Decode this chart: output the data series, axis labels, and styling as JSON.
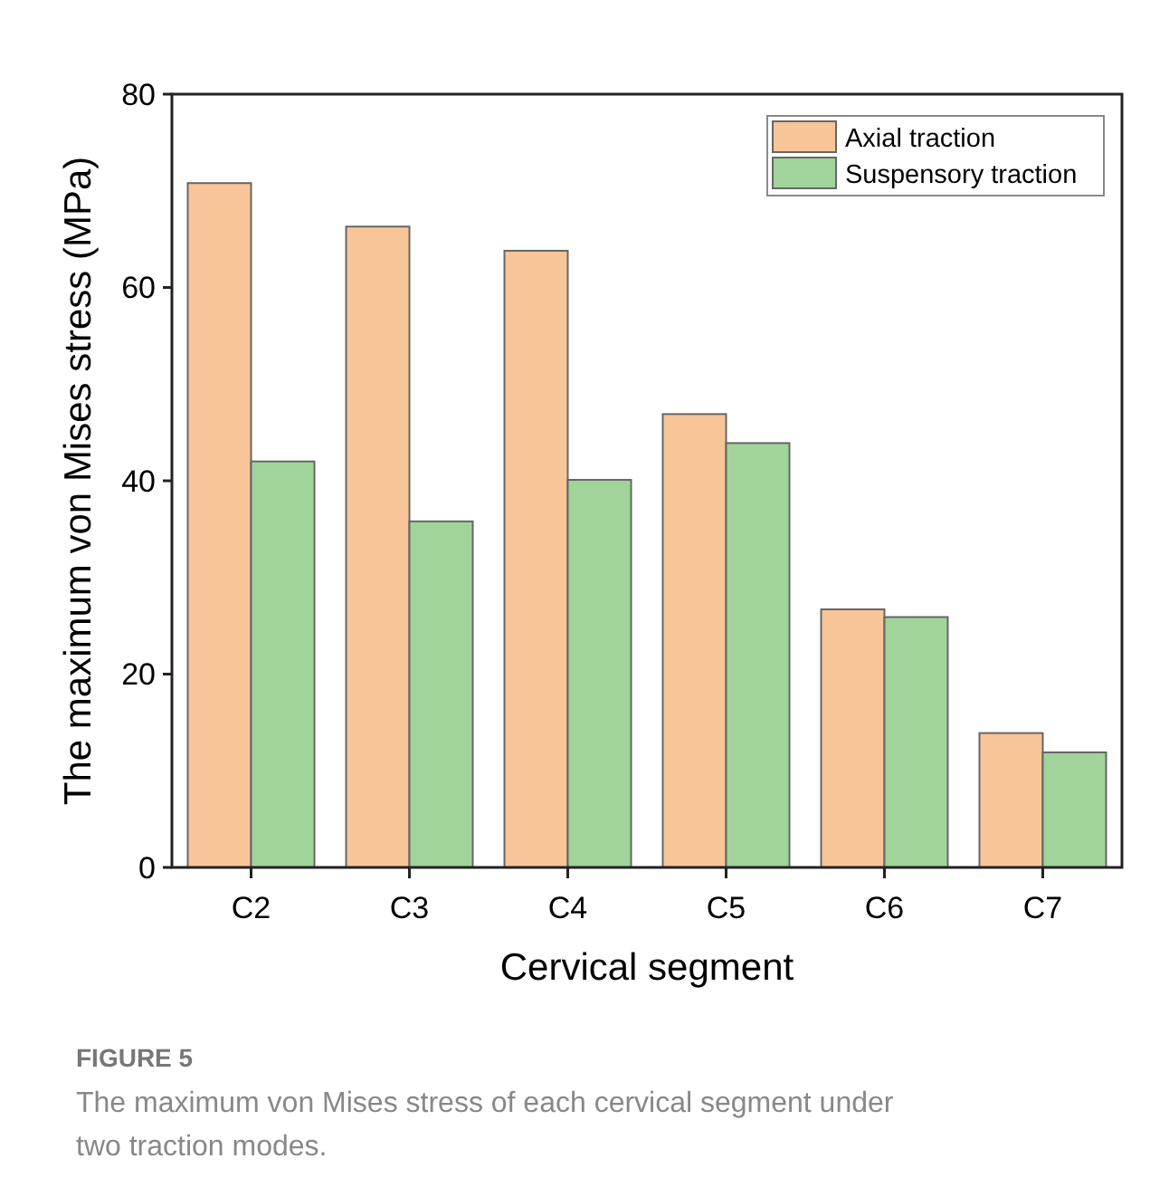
{
  "chart_data": {
    "type": "bar",
    "xlabel": "Cervical segment",
    "ylabel": "The maximum von Mises stress (MPa)",
    "categories": [
      "C2",
      "C3",
      "C4",
      "C5",
      "C6",
      "C7"
    ],
    "series": [
      {
        "name": "Axial traction",
        "color": "#f8c598",
        "values": [
          70.8,
          66.3,
          63.8,
          46.9,
          26.7,
          13.9
        ]
      },
      {
        "name": "Suspensory traction",
        "color": "#a0d49a",
        "values": [
          42.0,
          35.8,
          40.1,
          43.9,
          25.9,
          11.9
        ]
      }
    ],
    "ylim": [
      0,
      80
    ],
    "yticks": [
      0,
      20,
      40,
      60,
      80
    ],
    "grid": false,
    "legend": "top right",
    "annotations": [
      "FIGURE 5",
      "The maximum von Mises stress of each cervical segment under two traction modes."
    ]
  }
}
